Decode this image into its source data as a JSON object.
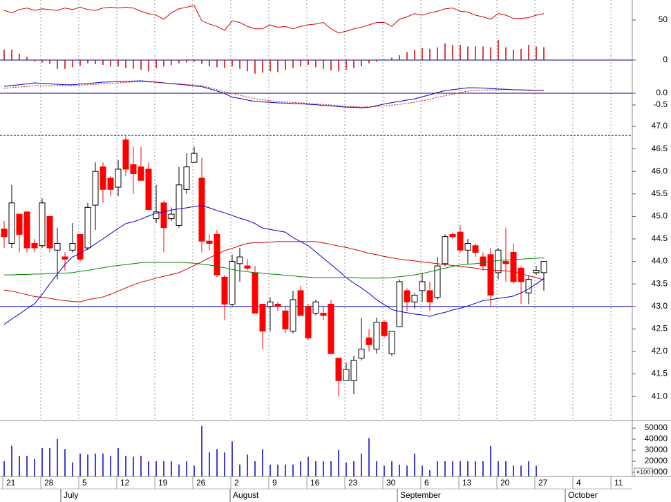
{
  "chart_data": [
    {
      "type": "line",
      "ylim": [
        -18.1,
        75
      ],
      "yticks": [
        0,
        50
      ],
      "reference_lines": [
        {
          "value": 0,
          "color": "#000080",
          "style": "solid"
        }
      ],
      "series": [
        {
          "name": "RSI",
          "kind": "line",
          "color": "#d00000",
          "values": [
            62,
            59,
            63,
            65,
            62,
            64,
            63,
            62,
            65,
            63,
            66,
            63,
            62,
            65,
            66,
            65,
            66,
            65,
            61,
            58,
            56,
            51,
            59,
            64,
            66,
            68,
            49,
            45,
            42,
            37,
            49,
            47,
            42,
            39,
            39,
            44,
            41,
            42,
            39,
            42,
            44,
            45,
            47,
            39,
            34,
            36,
            39,
            41,
            44,
            47,
            47,
            42,
            51,
            54,
            58,
            56,
            59,
            61,
            64,
            65,
            61,
            60,
            56,
            54,
            51,
            58,
            56,
            52,
            52,
            53,
            56,
            58
          ]
        },
        {
          "name": "Momentum",
          "kind": "bar",
          "color": "#d00000",
          "values": [
            13,
            13,
            8,
            4,
            -2,
            -3,
            -5,
            -11,
            -11,
            -9,
            -7,
            -4,
            -5,
            -6,
            -8,
            -8,
            -10,
            -11,
            -12,
            -14,
            -10,
            -8,
            -6,
            -4,
            -3,
            -2,
            -5,
            -8,
            -9,
            -10,
            -8,
            -11,
            -14,
            -17,
            -16,
            -14,
            -15,
            -12,
            -10,
            -8,
            -6,
            -9,
            -11,
            -13,
            -14,
            -12,
            -10,
            -8,
            -4,
            -2,
            1,
            3,
            6,
            10,
            13,
            15,
            14,
            16,
            21,
            19,
            19,
            17,
            17,
            17,
            16,
            25,
            16,
            13,
            14,
            19,
            17,
            16
          ]
        }
      ]
    },
    {
      "type": "line",
      "ylim": [
        -0.97,
        0.735
      ],
      "yticks": [
        {
          "value": 0,
          "label": "0.0"
        },
        -0.5
      ],
      "reference_lines": [
        {
          "value": 0,
          "color": "#000080",
          "style": "solid"
        }
      ],
      "series": [
        {
          "name": "MACD",
          "kind": "line",
          "color": "#0000c0",
          "values": [
            0.29,
            0.33,
            0.36,
            0.4,
            0.44,
            0.42,
            0.4,
            0.38,
            0.36,
            0.36,
            0.39,
            0.41,
            0.44,
            0.47,
            0.48,
            0.49,
            0.51,
            0.52,
            0.53,
            0.5,
            0.47,
            0.44,
            0.41,
            0.38,
            0.35,
            0.31,
            0.28,
            0.19,
            0.09,
            -0.01,
            -0.17,
            -0.22,
            -0.29,
            -0.35,
            -0.37,
            -0.39,
            -0.41,
            -0.42,
            -0.44,
            -0.45,
            -0.47,
            -0.49,
            -0.52,
            -0.54,
            -0.57,
            -0.59,
            -0.6,
            -0.62,
            -0.6,
            -0.53,
            -0.46,
            -0.4,
            -0.35,
            -0.29,
            -0.24,
            -0.15,
            -0.07,
            0.03,
            0.11,
            0.15,
            0.19,
            0.23,
            0.23,
            0.22,
            0.2,
            0.18,
            0.17,
            0.15,
            0.14,
            0.12,
            0.12,
            0.12
          ]
        },
        {
          "name": "Signal",
          "kind": "line",
          "dash": true,
          "color": "#d00000",
          "values": [
            0.21,
            0.24,
            0.27,
            0.29,
            0.32,
            0.32,
            0.32,
            0.32,
            0.32,
            0.32,
            0.34,
            0.36,
            0.38,
            0.4,
            0.42,
            0.44,
            0.46,
            0.48,
            0.5,
            0.48,
            0.46,
            0.44,
            0.42,
            0.4,
            0.37,
            0.35,
            0.32,
            0.24,
            0.15,
            0.06,
            0.0,
            -0.08,
            -0.16,
            -0.24,
            -0.28,
            -0.32,
            -0.35,
            -0.37,
            -0.39,
            -0.41,
            -0.43,
            -0.46,
            -0.48,
            -0.5,
            -0.53,
            -0.56,
            -0.57,
            -0.59,
            -0.58,
            -0.56,
            -0.54,
            -0.51,
            -0.47,
            -0.43,
            -0.38,
            -0.32,
            -0.26,
            -0.17,
            -0.11,
            -0.04,
            0.03,
            0.09,
            0.11,
            0.13,
            0.14,
            0.15,
            0.15,
            0.15,
            0.15,
            0.14,
            0.13,
            0.12
          ]
        }
      ]
    },
    {
      "type": "candlestick",
      "ylim": [
        40.48,
        47.2
      ],
      "yticks": [
        {
          "value": 47,
          "label": "47.0"
        },
        46.5,
        {
          "value": 46,
          "label": "46.0"
        },
        45.5,
        {
          "value": 45,
          "label": "45.0"
        },
        44.5,
        {
          "value": 44,
          "label": "44.0"
        },
        43.5,
        {
          "value": 43,
          "label": "43.0"
        },
        42.5,
        {
          "value": 42,
          "label": "42.0"
        },
        41.5,
        {
          "value": 41,
          "label": "41.0"
        }
      ],
      "colors": {
        "up": "#ffffff",
        "up_outline": "#000000",
        "down": "#ff0000"
      },
      "reference_lines": [
        {
          "value": 46.8,
          "color": "#0000c0",
          "style": "dashed"
        },
        {
          "value": 43,
          "color": "#0000c0",
          "style": "solid"
        }
      ],
      "open": [
        44.72,
        44.4,
        45.05,
        45.1,
        44.4,
        44.35,
        45.0,
        44.25,
        44.1,
        44.25,
        44.6,
        44.3,
        45.25,
        46.1,
        45.85,
        45.65,
        46.7,
        46.15,
        46.1,
        46.05,
        44.95,
        45.3,
        44.95,
        44.8,
        45.6,
        46.2,
        45.85,
        44.45,
        44.6,
        43.65,
        43.05,
        43.95,
        43.9,
        43.75,
        43.05,
        43.0,
        43.05,
        42.9,
        42.45,
        43.35,
        43.0,
        42.85,
        42.85,
        43.05,
        41.85,
        41.35,
        41.35,
        41.85,
        42.3,
        42.05,
        42.65,
        41.95,
        42.55,
        43.35,
        43.1,
        43.35,
        43.35,
        43.2,
        43.95,
        44.6,
        44.65,
        44.25,
        44.35,
        44.1,
        44.15,
        43.75,
        44.0,
        44.2,
        43.85,
        43.3,
        43.75,
        43.75
      ],
      "high": [
        44.9,
        45.7,
        45.05,
        45.1,
        44.5,
        45.4,
        45.0,
        44.75,
        44.2,
        44.85,
        44.6,
        45.3,
        46.2,
        46.2,
        45.9,
        46.25,
        46.8,
        46.55,
        46.55,
        46.2,
        45.7,
        45.35,
        45.2,
        46.1,
        46.4,
        46.55,
        46.3,
        44.6,
        44.7,
        43.7,
        44.15,
        44.3,
        44.05,
        43.9,
        43.05,
        43.2,
        43.1,
        43.0,
        43.35,
        43.45,
        43.05,
        43.15,
        43.0,
        43.15,
        41.85,
        41.75,
        41.9,
        42.75,
        42.5,
        42.75,
        42.7,
        42.45,
        43.6,
        43.4,
        43.3,
        43.75,
        43.55,
        44.1,
        44.6,
        44.65,
        44.8,
        44.5,
        44.4,
        44.2,
        44.3,
        44.3,
        44.75,
        44.4,
        43.9,
        43.7,
        43.9,
        44.0
      ],
      "low": [
        44.3,
        44.3,
        44.2,
        44.2,
        44.2,
        44.3,
        44.2,
        43.6,
        43.8,
        44.2,
        44.0,
        44.25,
        44.7,
        45.3,
        45.45,
        45.45,
        45.9,
        45.5,
        45.8,
        45.15,
        44.85,
        44.2,
        44.9,
        44.75,
        45.5,
        46.2,
        44.2,
        44.25,
        43.65,
        42.7,
        43.0,
        43.55,
        43.8,
        42.85,
        42.05,
        42.45,
        42.9,
        42.4,
        42.4,
        42.8,
        42.25,
        42.8,
        42.7,
        41.95,
        41.0,
        41.35,
        41.05,
        41.8,
        42.0,
        41.95,
        42.3,
        41.9,
        42.55,
        42.9,
        42.95,
        43.1,
        42.9,
        43.15,
        43.9,
        44.5,
        44.2,
        43.95,
        44.1,
        43.8,
        43.0,
        43.6,
        43.55,
        43.5,
        43.05,
        43.05,
        43.7,
        43.35
      ],
      "close": [
        44.55,
        45.3,
        44.6,
        44.3,
        44.3,
        45.3,
        44.3,
        44.4,
        44.05,
        44.4,
        44.05,
        45.2,
        46.0,
        45.6,
        45.6,
        46.05,
        46.05,
        45.95,
        45.8,
        45.15,
        45.1,
        44.75,
        45.05,
        45.7,
        46.1,
        46.4,
        44.45,
        44.4,
        43.7,
        43.05,
        44.0,
        44.1,
        43.85,
        42.85,
        42.45,
        43.1,
        43.0,
        42.5,
        43.15,
        42.8,
        42.3,
        43.1,
        42.8,
        41.95,
        41.35,
        41.6,
        41.8,
        42.05,
        42.15,
        42.65,
        42.35,
        42.45,
        43.55,
        43.1,
        43.25,
        43.55,
        43.1,
        43.9,
        44.55,
        44.55,
        44.25,
        44.4,
        44.2,
        43.9,
        43.25,
        44.25,
        43.95,
        43.55,
        43.55,
        43.6,
        43.8,
        44.0
      ],
      "series": [
        {
          "name": "MA short",
          "color": "#0000cc",
          "values": [
            42.6,
            42.72,
            42.83,
            42.95,
            43.06,
            43.27,
            43.5,
            43.72,
            43.93,
            44.1,
            44.18,
            44.28,
            44.39,
            44.5,
            44.62,
            44.73,
            44.84,
            44.88,
            44.94,
            45.01,
            45.07,
            45.1,
            45.14,
            45.17,
            45.19,
            45.22,
            45.24,
            45.19,
            45.13,
            45.08,
            45.02,
            44.96,
            44.91,
            44.84,
            44.74,
            44.71,
            44.68,
            44.65,
            44.53,
            44.44,
            44.35,
            44.21,
            44.07,
            43.93,
            43.79,
            43.64,
            43.52,
            43.41,
            43.29,
            43.15,
            43.04,
            42.93,
            42.89,
            42.86,
            42.83,
            42.81,
            42.78,
            42.83,
            42.87,
            42.92,
            42.96,
            43.01,
            43.07,
            43.13,
            43.15,
            43.18,
            43.2,
            43.23,
            43.3,
            43.39,
            43.5,
            43.62
          ]
        },
        {
          "name": "MA medium",
          "color": "#cc0000",
          "values": [
            43.36,
            43.34,
            43.3,
            43.26,
            43.22,
            43.2,
            43.18,
            43.15,
            43.13,
            43.11,
            43.1,
            43.15,
            43.18,
            43.21,
            43.27,
            43.34,
            43.41,
            43.48,
            43.54,
            43.58,
            43.63,
            43.67,
            43.71,
            43.75,
            43.83,
            43.91,
            43.99,
            44.08,
            44.16,
            44.24,
            44.29,
            44.35,
            44.4,
            44.42,
            44.42,
            44.43,
            44.44,
            44.44,
            44.44,
            44.44,
            44.44,
            44.44,
            44.41,
            44.38,
            44.34,
            44.31,
            44.27,
            44.23,
            44.18,
            44.15,
            44.11,
            44.08,
            44.05,
            44.03,
            44.01,
            43.99,
            43.97,
            43.95,
            43.93,
            43.91,
            43.89,
            43.87,
            43.85,
            43.82,
            43.81,
            43.8,
            43.79,
            43.77,
            43.73,
            43.68,
            43.64,
            43.59
          ]
        },
        {
          "name": "MA long",
          "color": "#008000",
          "values": [
            43.7,
            43.7,
            43.71,
            43.71,
            43.72,
            43.72,
            43.73,
            43.74,
            43.74,
            43.75,
            43.78,
            43.8,
            43.83,
            43.86,
            43.89,
            43.91,
            43.93,
            43.95,
            43.97,
            43.98,
            43.98,
            43.98,
            43.98,
            43.98,
            43.97,
            43.96,
            43.94,
            43.92,
            43.89,
            43.86,
            43.82,
            43.79,
            43.77,
            43.75,
            43.74,
            43.72,
            43.71,
            43.69,
            43.68,
            43.66,
            43.65,
            43.64,
            43.64,
            43.64,
            43.64,
            43.64,
            43.64,
            43.63,
            43.63,
            43.63,
            43.63,
            43.64,
            43.66,
            43.68,
            43.7,
            43.73,
            43.77,
            43.81,
            43.85,
            43.89,
            43.92,
            43.94,
            43.95,
            43.97,
            44.0,
            44.02,
            44.03,
            44.04,
            44.05,
            44.06,
            44.07,
            44.08
          ]
        }
      ]
    },
    {
      "type": "bar",
      "ylim": [
        6250,
        56250
      ],
      "yticks": [
        10000,
        20000,
        30000,
        40000,
        50000
      ],
      "color": "#0000cc",
      "unit_label": "×100",
      "values": [
        20000,
        34000,
        25000,
        25000,
        22000,
        32000,
        32000,
        40000,
        31000,
        19000,
        27000,
        26000,
        27000,
        27000,
        25000,
        32000,
        25000,
        24000,
        25000,
        20000,
        20000,
        20000,
        20000,
        17000,
        20000,
        16000,
        52000,
        28000,
        31000,
        28000,
        38000,
        17000,
        26000,
        20000,
        31000,
        17000,
        17000,
        17000,
        17000,
        20000,
        24000,
        20000,
        20000,
        20000,
        30000,
        19000,
        20000,
        27000,
        41000,
        20000,
        16000,
        20000,
        17000,
        16000,
        27000,
        16000,
        12000,
        20000,
        20000,
        20000,
        20000,
        20000,
        20000,
        20000,
        34000,
        20000,
        20000,
        16000,
        16000,
        20000,
        16000,
        null
      ]
    }
  ],
  "x_axis": {
    "week_labels": [
      "21",
      "28",
      "5",
      "12",
      "19",
      "26",
      "2",
      "9",
      "16",
      "23",
      "30",
      "6",
      "13",
      "20",
      "27",
      "4",
      "11"
    ],
    "month_labels": [
      "July",
      "August",
      "September",
      "October"
    ]
  }
}
